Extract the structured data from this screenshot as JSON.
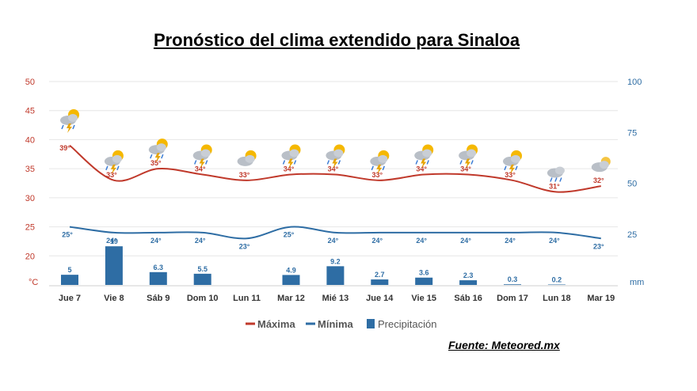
{
  "title": "Pronóstico del clima extendido para Sinaloa",
  "source": "Fuente: Meteored.mx",
  "chart_data": {
    "type": "line",
    "categories": [
      "Jue 7",
      "Vie 8",
      "Sáb 9",
      "Dom 10",
      "Lun 11",
      "Mar 12",
      "Mié 13",
      "Jue 14",
      "Vie 15",
      "Sáb 16",
      "Dom 17",
      "Lun 18",
      "Mar 19"
    ],
    "series": [
      {
        "name": "Máxima",
        "axis": "left",
        "values": [
          39,
          33,
          35,
          34,
          33,
          34,
          34,
          33,
          34,
          34,
          33,
          31,
          32
        ],
        "labels": [
          "39°",
          "33°",
          "35°",
          "34°",
          "33°",
          "34°",
          "34°",
          "33°",
          "34°",
          "34°",
          "33°",
          "31°",
          "32°"
        ],
        "color": "#c0392b"
      },
      {
        "name": "Mínima",
        "axis": "left",
        "values": [
          25,
          24,
          24,
          24,
          23,
          25,
          24,
          24,
          24,
          24,
          24,
          24,
          23
        ],
        "labels": [
          "25°",
          "24°",
          "24°",
          "24°",
          "23°",
          "25°",
          "24°",
          "24°",
          "24°",
          "24°",
          "24°",
          "24°",
          "23°"
        ],
        "color": "#2e6da4"
      },
      {
        "name": "Precipitación",
        "axis": "right",
        "type": "bar",
        "values": [
          5,
          19,
          6.3,
          5.5,
          0,
          4.9,
          9.2,
          2.7,
          3.6,
          2.3,
          0.3,
          0.2,
          0
        ],
        "labels": [
          "5",
          "19",
          "6.3",
          "5.5",
          "",
          "4.9",
          "9.2",
          "2.7",
          "3.6",
          "2.3",
          "0.3",
          "0.2",
          ""
        ],
        "color": "#2e6da4"
      }
    ],
    "left_axis": {
      "unit": "°C",
      "ticks": [
        "50",
        "45",
        "40",
        "35",
        "30",
        "25",
        "20"
      ],
      "range": [
        15,
        50
      ]
    },
    "right_axis": {
      "unit": "mm",
      "ticks": [
        "100",
        "75",
        "50",
        "25"
      ],
      "range": [
        0,
        100
      ]
    },
    "icons": [
      "storm-icon",
      "storm-icon",
      "storm-icon",
      "storm-icon",
      "sun-cloud-icon",
      "storm-icon",
      "storm-icon",
      "storm-icon",
      "storm-icon",
      "storm-icon",
      "storm-icon",
      "rain-icon",
      "cloud-icon"
    ],
    "grid": true,
    "legend": "bottom"
  }
}
